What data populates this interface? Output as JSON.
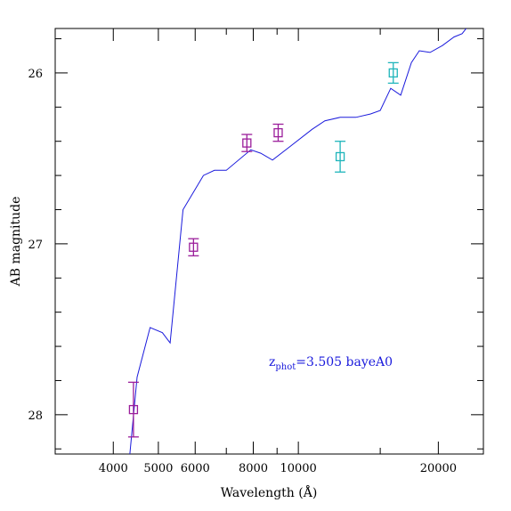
{
  "chart_data": {
    "type": "scatter",
    "title": "",
    "xlabel": "Wavelength (Å)",
    "ylabel": "AB magnitude",
    "xscale": "log",
    "xlim": [
      3000,
      25000
    ],
    "ylim": [
      28.23,
      25.74
    ],
    "y_inverted": true,
    "xticks": [
      4000,
      5000,
      6000,
      8000,
      10000,
      20000
    ],
    "xtick_labels": [
      "4000",
      "5000",
      "6000",
      "8000",
      "10000",
      "20000"
    ],
    "xticks_minor": [
      3000,
      7000,
      9000,
      15000
    ],
    "yticks": [
      26,
      27,
      28
    ],
    "ytick_labels": [
      "26",
      "27",
      "28"
    ],
    "yticks_minor": [
      25.8,
      26.2,
      26.4,
      26.6,
      26.8,
      27.2,
      27.4,
      27.6,
      27.8,
      28.2
    ],
    "grid": false,
    "annotation": {
      "text_main": "z",
      "text_sub": "phot",
      "text_rest": "=3.505 bayeA0",
      "color": "#1a1adc"
    },
    "series": [
      {
        "kind": "line",
        "color": "#1a1adc",
        "x": [
          4300,
          4500,
          4800,
          5100,
          5300,
          5650,
          6250,
          6600,
          7000,
          7900,
          8300,
          8800,
          9600,
          10700,
          11400,
          12300,
          13300,
          14300,
          15000,
          15800,
          16600,
          17500,
          18200,
          19200,
          20400,
          21600,
          22500,
          23100,
          24000,
          25000
        ],
        "y": [
          28.35,
          27.78,
          27.49,
          27.52,
          27.58,
          26.8,
          26.6,
          26.57,
          26.57,
          26.45,
          26.47,
          26.51,
          26.43,
          26.33,
          26.28,
          26.26,
          26.26,
          26.24,
          26.22,
          26.09,
          26.13,
          25.94,
          25.87,
          25.88,
          25.84,
          25.79,
          25.77,
          25.73,
          25.71,
          25.68
        ]
      },
      {
        "kind": "points-errorbars",
        "color": "#9b1e9b",
        "points": [
          {
            "x": 4420,
            "y": 27.97,
            "err": 0.16
          },
          {
            "x": 5950,
            "y": 27.02,
            "err": 0.05
          },
          {
            "x": 7750,
            "y": 26.41,
            "err": 0.05
          },
          {
            "x": 9050,
            "y": 26.35,
            "err": 0.05
          }
        ]
      },
      {
        "kind": "points-errorbars",
        "color": "#1fb5bb",
        "points": [
          {
            "x": 12300,
            "y": 26.49,
            "err": 0.09
          },
          {
            "x": 16000,
            "y": 26.0,
            "err": 0.06
          }
        ]
      }
    ]
  }
}
